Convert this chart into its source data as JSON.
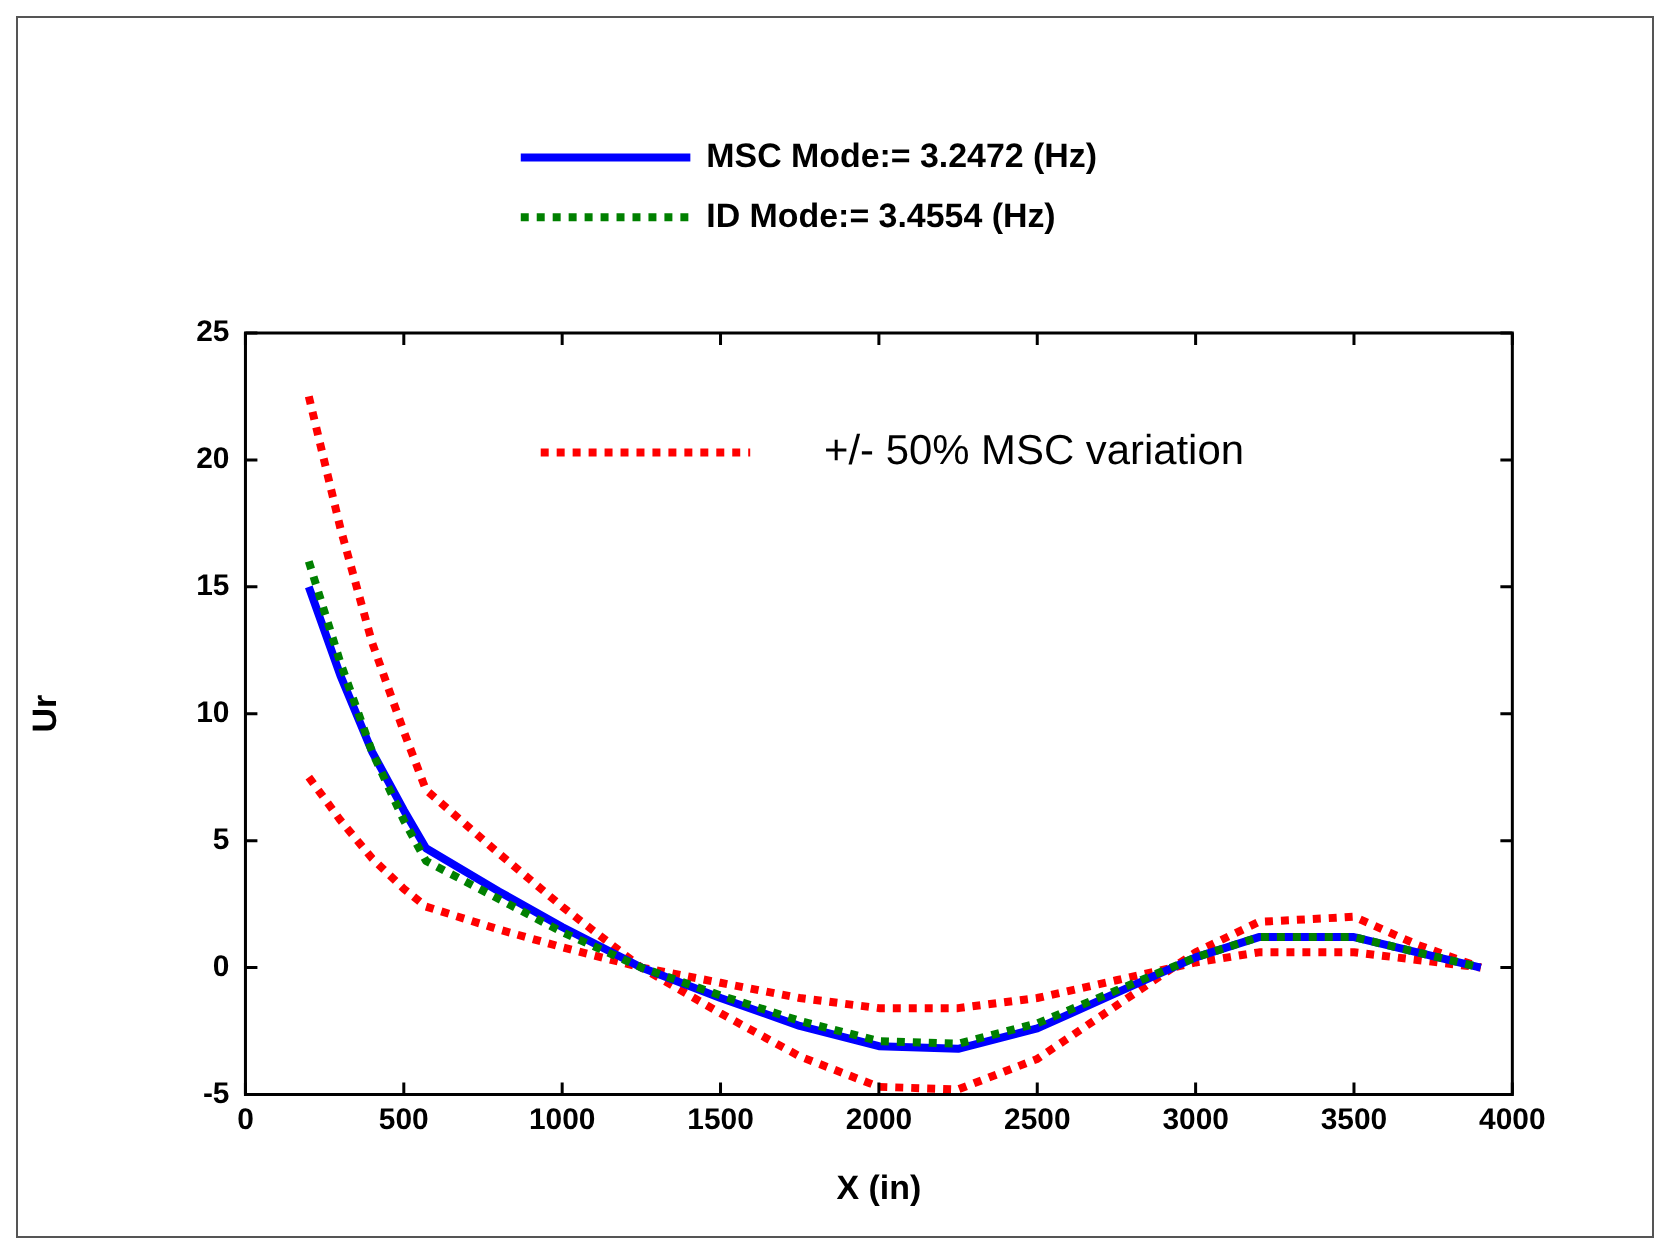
{
  "chart_data": {
    "type": "line",
    "xlabel": "X (in)",
    "ylabel": "Ur",
    "x": [
      200,
      300,
      400,
      500,
      570,
      800,
      1000,
      1250,
      1500,
      1750,
      2000,
      2250,
      2500,
      2750,
      3000,
      3200,
      3500,
      3700,
      3900
    ],
    "series": [
      {
        "name": "MSC Mode:= 3.2472 (Hz)",
        "color": "#0000ff",
        "line_style": "solid",
        "values": [
          15,
          11.5,
          8.5,
          6.2,
          4.7,
          3.0,
          1.6,
          0,
          -1.2,
          -2.3,
          -3.1,
          -3.2,
          -2.4,
          -1.0,
          0.4,
          1.2,
          1.2,
          0.6,
          0
        ]
      },
      {
        "name": "ID Mode:= 3.4554 (Hz)",
        "color": "#008000",
        "line_style": "dotted",
        "values": [
          16,
          12.0,
          8.5,
          5.8,
          4.2,
          2.7,
          1.4,
          0,
          -1.1,
          -2.1,
          -2.9,
          -3.0,
          -2.2,
          -0.9,
          0.4,
          1.2,
          1.2,
          0.6,
          0
        ]
      },
      {
        "name": "+/- 50% MSC variation",
        "color": "#ff0000",
        "line_style": "dotted",
        "values": [
          22.5,
          17.3,
          12.8,
          9.3,
          7.0,
          4.5,
          2.4,
          0,
          -1.8,
          -3.5,
          -4.7,
          -4.8,
          -3.6,
          -1.5,
          0.6,
          1.8,
          2.0,
          0.9,
          0
        ]
      },
      {
        "color": "#ff0000",
        "line_style": "dotted",
        "values": [
          7.5,
          5.8,
          4.3,
          3.1,
          2.4,
          1.5,
          0.8,
          0,
          -0.6,
          -1.2,
          -1.6,
          -1.6,
          -1.2,
          -0.5,
          0.2,
          0.6,
          0.6,
          0.3,
          0
        ]
      }
    ],
    "xlim": [
      0,
      4000
    ],
    "xticks": [
      0,
      500,
      1000,
      1500,
      2000,
      2500,
      3000,
      3500,
      4000
    ],
    "ylim": [
      -5,
      25
    ],
    "yticks": [
      -5,
      0,
      5,
      10,
      15,
      20,
      25
    ],
    "grid": false,
    "legend": "top",
    "marker": "none"
  }
}
